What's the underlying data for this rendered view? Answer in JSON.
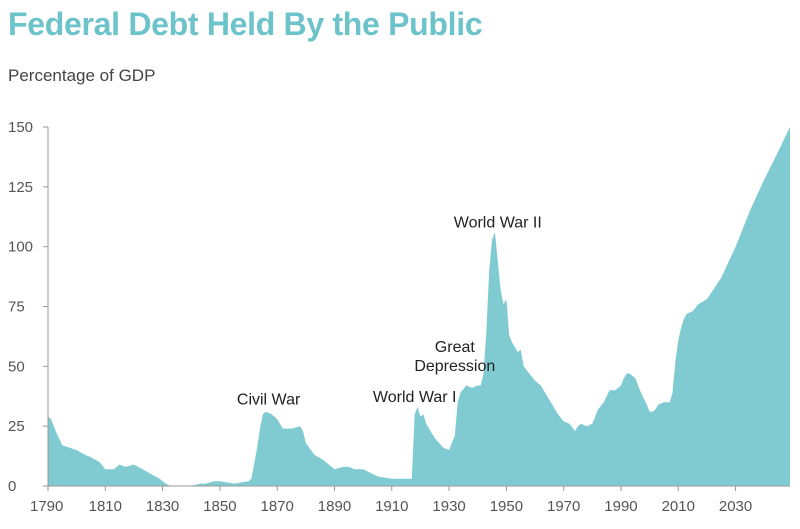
{
  "title": "Federal Debt Held By the Public",
  "subtitle": "Percentage of GDP",
  "colors": {
    "title": "#6cc3c9",
    "area": "#7fcbd1"
  },
  "chart_data": {
    "type": "area",
    "title": "Federal Debt Held By the Public",
    "ylabel": "Percentage of GDP",
    "xlim": [
      1790,
      2049
    ],
    "ylim": [
      0,
      150
    ],
    "grid": false,
    "x_ticks": [
      1790,
      1810,
      1830,
      1850,
      1870,
      1890,
      1910,
      1930,
      1950,
      1970,
      1990,
      2010,
      2030
    ],
    "y_ticks": [
      0,
      25,
      50,
      75,
      100,
      125,
      150
    ],
    "series": [
      {
        "x": [
          1790,
          1791,
          1793,
          1795,
          1800,
          1803,
          1805,
          1808,
          1810,
          1813,
          1815,
          1817,
          1820,
          1823,
          1826,
          1829,
          1831,
          1833,
          1835,
          1840,
          1843,
          1845,
          1848,
          1850,
          1855,
          1860,
          1861,
          1863,
          1864,
          1865,
          1866,
          1868,
          1870,
          1872,
          1875,
          1878,
          1879,
          1880,
          1883,
          1886,
          1890,
          1893,
          1895,
          1897,
          1900,
          1905,
          1910,
          1915,
          1916,
          1917,
          1918,
          1919,
          1920,
          1921,
          1922,
          1923,
          1925,
          1928,
          1930,
          1931,
          1932,
          1933,
          1934,
          1936,
          1938,
          1940,
          1941,
          1942,
          1943,
          1944,
          1945,
          1946,
          1947,
          1948,
          1949,
          1950,
          1951,
          1952,
          1954,
          1955,
          1956,
          1958,
          1960,
          1962,
          1965,
          1968,
          1970,
          1972,
          1974,
          1975,
          1976,
          1978,
          1980,
          1982,
          1984,
          1986,
          1988,
          1990,
          1991,
          1992,
          1993,
          1995,
          1997,
          1999,
          2000,
          2001,
          2002,
          2003,
          2005,
          2007,
          2008,
          2009,
          2010,
          2011,
          2012,
          2013,
          2015,
          2017,
          2020,
          2025,
          2030,
          2035,
          2040,
          2045,
          2049
        ],
        "y": [
          29,
          28,
          22,
          17,
          15,
          13,
          12,
          10,
          7,
          7,
          9,
          8,
          9,
          7,
          5,
          3,
          1,
          0,
          0,
          0,
          1,
          1,
          2,
          2,
          1,
          2,
          3,
          16,
          24,
          30,
          31,
          30,
          28,
          24,
          24,
          25,
          23,
          18,
          13,
          11,
          7,
          8,
          8,
          7,
          7,
          4,
          3,
          3,
          3,
          3,
          30,
          33,
          29,
          30,
          26,
          24,
          20,
          16,
          15,
          18,
          21,
          35,
          39,
          42,
          41,
          42,
          42,
          47,
          64,
          90,
          103,
          106,
          94,
          82,
          76,
          78,
          63,
          60,
          56,
          57,
          50,
          47,
          44,
          42,
          36,
          30,
          27,
          26,
          23,
          25,
          26,
          25,
          26,
          32,
          35,
          40,
          40,
          42,
          45,
          47,
          47,
          45,
          39,
          34,
          31,
          31,
          32,
          34,
          35,
          35,
          39,
          52,
          61,
          66,
          70,
          72,
          73,
          76,
          78,
          87,
          100,
          115,
          128,
          140,
          150
        ]
      }
    ],
    "annotations": [
      {
        "text": "Civil War",
        "x": 1867,
        "y": 34
      },
      {
        "text": "World War I",
        "x": 1918,
        "y": 35
      },
      {
        "text": "Great",
        "x": 1932,
        "y": 56
      },
      {
        "text": "Depression",
        "x": 1932,
        "y": 48
      },
      {
        "text": "World War II",
        "x": 1947,
        "y": 108
      }
    ]
  }
}
